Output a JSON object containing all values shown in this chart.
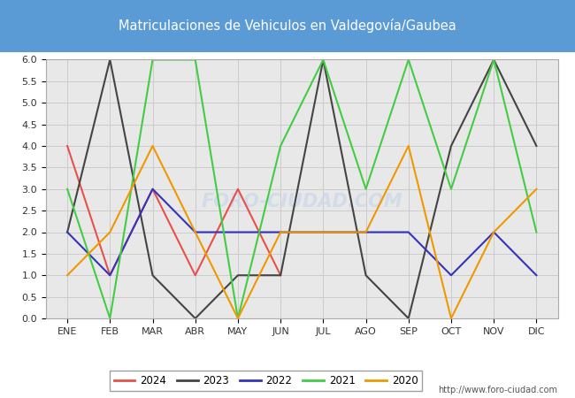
{
  "title": "Matriculaciones de Vehiculos en Valdegovía/Gaubea",
  "months": [
    "ENE",
    "FEB",
    "MAR",
    "ABR",
    "MAY",
    "JUN",
    "JUL",
    "AGO",
    "SEP",
    "OCT",
    "NOV",
    "DIC"
  ],
  "series": {
    "2024": {
      "values": [
        4,
        1,
        3,
        1,
        3,
        1,
        null,
        null,
        null,
        null,
        null,
        null
      ],
      "color": "#e8504a",
      "label": "2024"
    },
    "2023": {
      "values": [
        2,
        6,
        1,
        0,
        1,
        1,
        6,
        1,
        0,
        4,
        6,
        4
      ],
      "color": "#444444",
      "label": "2023"
    },
    "2022": {
      "values": [
        2,
        1,
        3,
        2,
        2,
        2,
        2,
        2,
        2,
        1,
        2,
        1
      ],
      "color": "#3333bb",
      "label": "2022"
    },
    "2021": {
      "values": [
        3,
        0,
        6,
        6,
        0,
        4,
        6,
        3,
        6,
        3,
        6,
        2
      ],
      "color": "#44cc44",
      "label": "2021"
    },
    "2020": {
      "values": [
        1,
        2,
        4,
        2,
        0,
        2,
        2,
        2,
        4,
        0,
        2,
        3
      ],
      "color": "#ee9900",
      "label": "2020"
    }
  },
  "ylim": [
    0,
    6.0
  ],
  "yticks": [
    0.0,
    0.5,
    1.0,
    1.5,
    2.0,
    2.5,
    3.0,
    3.5,
    4.0,
    4.5,
    5.0,
    5.5,
    6.0
  ],
  "grid_color": "#cccccc",
  "plot_bg_color": "#e8e8e8",
  "title_bg_color": "#5b9bd5",
  "title_text_color": "#ffffff",
  "fig_bg_color": "#ffffff",
  "watermark_text": "FORO-CIUDAD.COM",
  "watermark_color": "#c8d8e8",
  "footer_text": "http://www.foro-ciudad.com"
}
